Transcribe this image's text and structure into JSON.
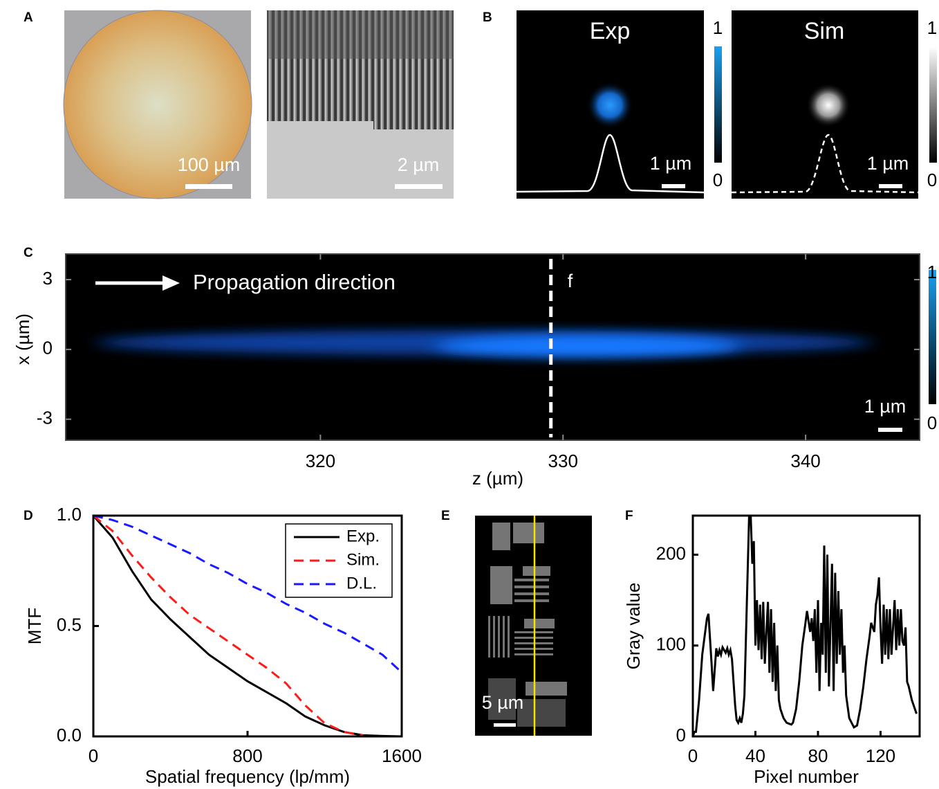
{
  "panel_labels": [
    "A",
    "B",
    "C",
    "D",
    "E",
    "F"
  ],
  "panel_a": {
    "scale_bars": [
      "100 µm",
      "2 µm"
    ]
  },
  "panel_b": {
    "titles": [
      "Exp",
      "Sim"
    ],
    "scale_bars": [
      "1 µm",
      "1 µm"
    ],
    "colorbar_ticks": [
      1,
      0
    ]
  },
  "panel_c": {
    "annotation": "Propagation direction",
    "focus_label": "f",
    "focus_z": 329.5,
    "scale_bar": "1 µm",
    "xlabel": "z (µm)",
    "ylabel": "x (µm)",
    "xlim": [
      309.5,
      344.7
    ],
    "ylim": [
      -3.9,
      4.1
    ],
    "xticks": [
      320,
      330,
      340
    ],
    "yticks": [
      3,
      0,
      -3
    ],
    "colorbar_ticks": [
      1,
      0
    ]
  },
  "panel_e": {
    "scale_bar": "5 µm"
  },
  "chart_data": [
    {
      "type": "line",
      "xlabel": "Spatial frequency (lp/mm)",
      "ylabel": "MTF",
      "x": [
        0,
        100,
        200,
        300,
        400,
        500,
        600,
        700,
        800,
        900,
        1000,
        1100,
        1200,
        1300,
        1400,
        1500,
        1600
      ],
      "series": [
        {
          "name": "Exp.",
          "color": "#000000",
          "dash": "solid",
          "values": [
            1,
            0.9,
            0.75,
            0.62,
            0.53,
            0.45,
            0.37,
            0.31,
            0.25,
            0.2,
            0.15,
            0.09,
            0.05,
            0.02,
            0.005,
            0.002,
            0
          ]
        },
        {
          "name": "Sim.",
          "color": "#ff1a1a",
          "dash": "dashed",
          "values": [
            1,
            0.93,
            0.82,
            0.72,
            0.63,
            0.55,
            0.49,
            0.43,
            0.37,
            0.31,
            0.24,
            0.14,
            0.06,
            0.02,
            0.005,
            null,
            null
          ]
        },
        {
          "name": "D.L.",
          "color": "#1a1aff",
          "dash": "dashed",
          "values": [
            1,
            0.98,
            0.95,
            0.91,
            0.87,
            0.83,
            0.78,
            0.74,
            0.69,
            0.65,
            0.6,
            0.56,
            0.51,
            0.47,
            0.42,
            0.37,
            0.29
          ]
        }
      ],
      "xlim": [
        0,
        1600
      ],
      "ylim": [
        0,
        1
      ],
      "xticks": [
        0,
        800,
        1600
      ],
      "yticks": [
        {
          "value": 0,
          "label": "0.0"
        },
        {
          "value": 0.5,
          "label": "0.5"
        },
        {
          "value": 1,
          "label": "1.0"
        }
      ],
      "legend": "upper-right"
    },
    {
      "type": "line",
      "xlabel": "Pixel number",
      "ylabel": "Gray value",
      "x": [
        0,
        1,
        2,
        4,
        6,
        9,
        10,
        12,
        13,
        15,
        16,
        17,
        18,
        19,
        21,
        22,
        23,
        24,
        25,
        27,
        28,
        29,
        30,
        31,
        32,
        33,
        36,
        37,
        38,
        39,
        40,
        41,
        42,
        43,
        44,
        45,
        46,
        48,
        49,
        50,
        51,
        52,
        53,
        54,
        55,
        56,
        58,
        60,
        63,
        64,
        66,
        68,
        70,
        72,
        73,
        75,
        76,
        77,
        78,
        79,
        80,
        81,
        82,
        83,
        84,
        85,
        86,
        87,
        89,
        90,
        91,
        92,
        93,
        94,
        95,
        96,
        97,
        98,
        100,
        103,
        105,
        107,
        109,
        111,
        113,
        114,
        116,
        117,
        118,
        119,
        120,
        121,
        122,
        123,
        124,
        125,
        126,
        127,
        129,
        130,
        131,
        132,
        133,
        134,
        135,
        136,
        137,
        138,
        140,
        143
      ],
      "series": [
        {
          "name": null,
          "color": "#000000",
          "dash": "solid",
          "values": [
            0,
            5,
            5,
            40,
            90,
            130,
            135,
            80,
            50,
            97,
            88,
            95,
            90,
            98,
            92,
            97,
            90,
            95,
            85,
            35,
            18,
            15,
            20,
            15,
            25,
            45,
            243,
            243,
            190,
            215,
            100,
            150,
            95,
            145,
            85,
            148,
            80,
            148,
            70,
            140,
            60,
            125,
            50,
            100,
            40,
            30,
            20,
            15,
            13,
            15,
            30,
            60,
            100,
            125,
            138,
            115,
            130,
            105,
            140,
            70,
            150,
            50,
            125,
            90,
            210,
            70,
            200,
            55,
            190,
            50,
            180,
            80,
            160,
            90,
            140,
            70,
            100,
            45,
            20,
            10,
            12,
            30,
            55,
            85,
            110,
            125,
            115,
            145,
            155,
            175,
            120,
            80,
            145,
            90,
            140,
            85,
            140,
            90,
            150,
            95,
            140,
            100,
            140,
            105,
            100,
            120,
            60,
            55,
            40,
            25
          ]
        }
      ],
      "xlim": [
        0,
        145
      ],
      "ylim": [
        0,
        243
      ],
      "xticks": [
        0,
        40,
        80,
        120
      ],
      "yticks": [
        0,
        100,
        200
      ]
    }
  ]
}
